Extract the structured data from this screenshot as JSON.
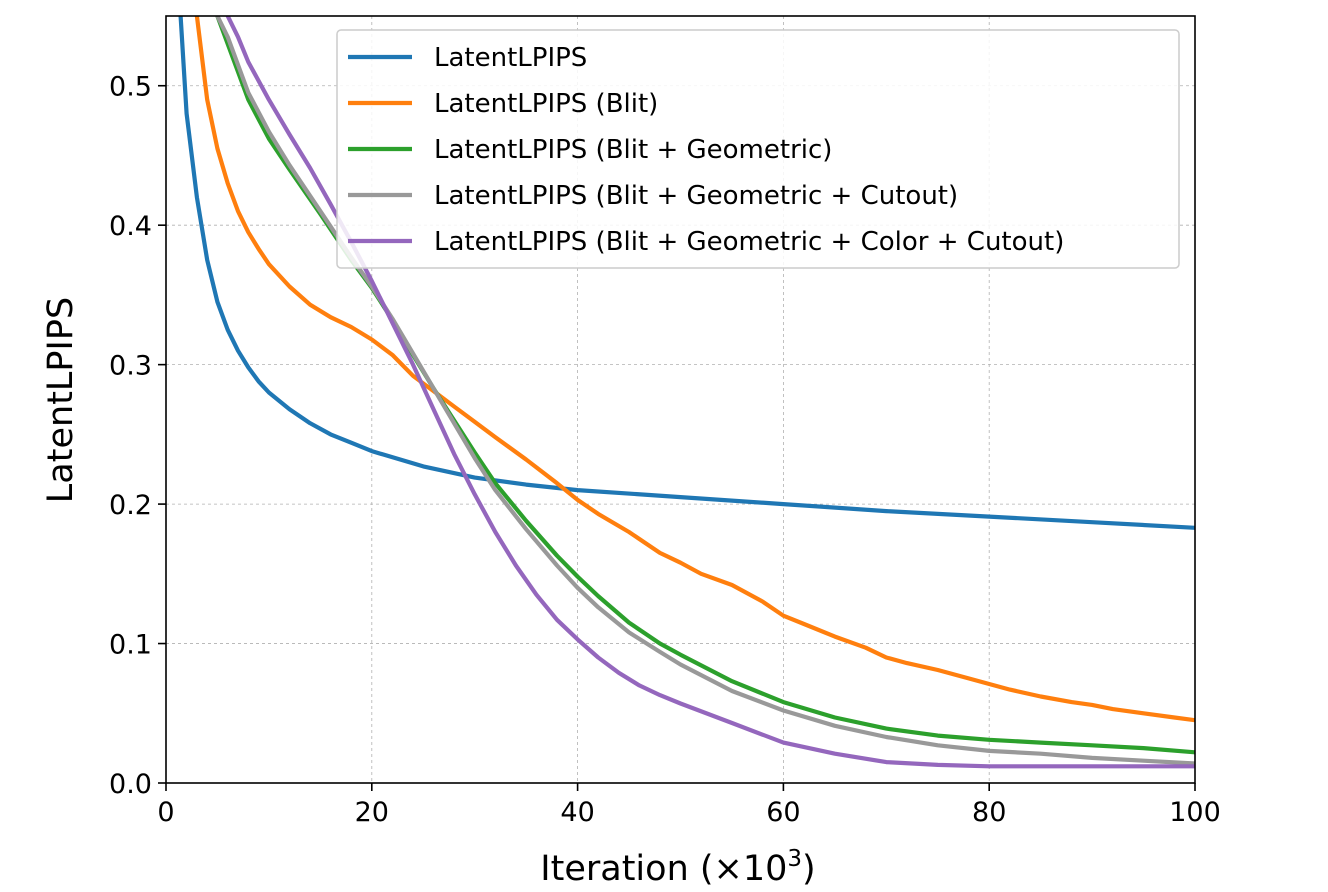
{
  "chart_data": {
    "type": "line",
    "title": "",
    "xlabel": "Iteration (×10",
    "xlabel_sup": "3",
    "xlabel_close": ")",
    "ylabel": "LatentLPIPS",
    "xlim": [
      0,
      100
    ],
    "ylim": [
      0.0,
      0.55
    ],
    "xticks": [
      0,
      20,
      40,
      60,
      80,
      100
    ],
    "xtick_labels": [
      "0",
      "20",
      "40",
      "60",
      "80",
      "100"
    ],
    "yticks": [
      0.0,
      0.1,
      0.2,
      0.3,
      0.4,
      0.5
    ],
    "ytick_labels": [
      "0.0",
      "0.1",
      "0.2",
      "0.3",
      "0.4",
      "0.5"
    ],
    "grid": true,
    "legend_position": "top-right",
    "series": [
      {
        "name": "LatentLPIPS",
        "color": "#1f77b4",
        "x": [
          1,
          2,
          3,
          4,
          5,
          6,
          7,
          8,
          9,
          10,
          12,
          14,
          16,
          18,
          20,
          25,
          30,
          35,
          40,
          50,
          60,
          70,
          80,
          90,
          100
        ],
        "y": [
          0.6,
          0.48,
          0.42,
          0.375,
          0.345,
          0.325,
          0.31,
          0.298,
          0.288,
          0.28,
          0.268,
          0.258,
          0.25,
          0.244,
          0.238,
          0.227,
          0.219,
          0.214,
          0.21,
          0.205,
          0.2,
          0.195,
          0.191,
          0.187,
          0.183
        ]
      },
      {
        "name": "LatentLPIPS (Blit)",
        "color": "#ff7f0e",
        "x": [
          3,
          4,
          5,
          6,
          7,
          8,
          9,
          10,
          12,
          14,
          16,
          18,
          20,
          22,
          24,
          26,
          28,
          30,
          32,
          35,
          38,
          40,
          42,
          45,
          48,
          50,
          52,
          55,
          58,
          60,
          62,
          65,
          68,
          70,
          72,
          75,
          78,
          80,
          82,
          85,
          88,
          90,
          92,
          95,
          98,
          100
        ],
        "y": [
          0.55,
          0.49,
          0.455,
          0.43,
          0.41,
          0.395,
          0.383,
          0.372,
          0.356,
          0.343,
          0.334,
          0.327,
          0.318,
          0.307,
          0.292,
          0.281,
          0.27,
          0.259,
          0.248,
          0.232,
          0.215,
          0.203,
          0.193,
          0.18,
          0.165,
          0.158,
          0.15,
          0.142,
          0.13,
          0.12,
          0.114,
          0.105,
          0.097,
          0.09,
          0.086,
          0.081,
          0.075,
          0.071,
          0.067,
          0.062,
          0.058,
          0.056,
          0.053,
          0.05,
          0.047,
          0.045
        ]
      },
      {
        "name": "LatentLPIPS (Blit + Geometric)",
        "color": "#2ca02c",
        "x": [
          5,
          6,
          7,
          8,
          10,
          12,
          15,
          18,
          20,
          22,
          24,
          26,
          28,
          30,
          32,
          35,
          38,
          40,
          42,
          45,
          48,
          50,
          55,
          60,
          65,
          70,
          75,
          80,
          85,
          90,
          95,
          100
        ],
        "y": [
          0.55,
          0.53,
          0.51,
          0.49,
          0.462,
          0.44,
          0.408,
          0.375,
          0.355,
          0.332,
          0.307,
          0.283,
          0.26,
          0.237,
          0.215,
          0.188,
          0.163,
          0.148,
          0.134,
          0.115,
          0.1,
          0.092,
          0.073,
          0.058,
          0.047,
          0.039,
          0.034,
          0.031,
          0.029,
          0.027,
          0.025,
          0.022
        ]
      },
      {
        "name": "LatentLPIPS (Blit + Geometric + Cutout)",
        "color": "#999999",
        "x": [
          5,
          6,
          7,
          8,
          10,
          12,
          15,
          18,
          20,
          22,
          24,
          26,
          28,
          30,
          32,
          35,
          38,
          40,
          42,
          45,
          48,
          50,
          55,
          60,
          65,
          70,
          75,
          80,
          85,
          90,
          95,
          100
        ],
        "y": [
          0.55,
          0.535,
          0.515,
          0.495,
          0.467,
          0.443,
          0.41,
          0.377,
          0.356,
          0.333,
          0.308,
          0.283,
          0.258,
          0.233,
          0.21,
          0.182,
          0.156,
          0.14,
          0.126,
          0.108,
          0.094,
          0.085,
          0.066,
          0.052,
          0.041,
          0.033,
          0.027,
          0.023,
          0.021,
          0.018,
          0.016,
          0.014
        ]
      },
      {
        "name": "LatentLPIPS (Blit + Geometric + Color + Cutout)",
        "color": "#9467bd",
        "x": [
          6,
          7,
          8,
          10,
          12,
          14,
          16,
          18,
          20,
          22,
          24,
          26,
          28,
          30,
          32,
          34,
          36,
          38,
          40,
          42,
          44,
          46,
          48,
          50,
          55,
          60,
          65,
          70,
          75,
          80,
          85,
          90,
          95,
          100
        ],
        "y": [
          0.55,
          0.535,
          0.517,
          0.49,
          0.465,
          0.441,
          0.415,
          0.388,
          0.36,
          0.33,
          0.3,
          0.268,
          0.236,
          0.207,
          0.18,
          0.156,
          0.135,
          0.117,
          0.103,
          0.09,
          0.079,
          0.07,
          0.063,
          0.057,
          0.043,
          0.029,
          0.021,
          0.015,
          0.013,
          0.012,
          0.012,
          0.012,
          0.012,
          0.012
        ]
      }
    ]
  }
}
